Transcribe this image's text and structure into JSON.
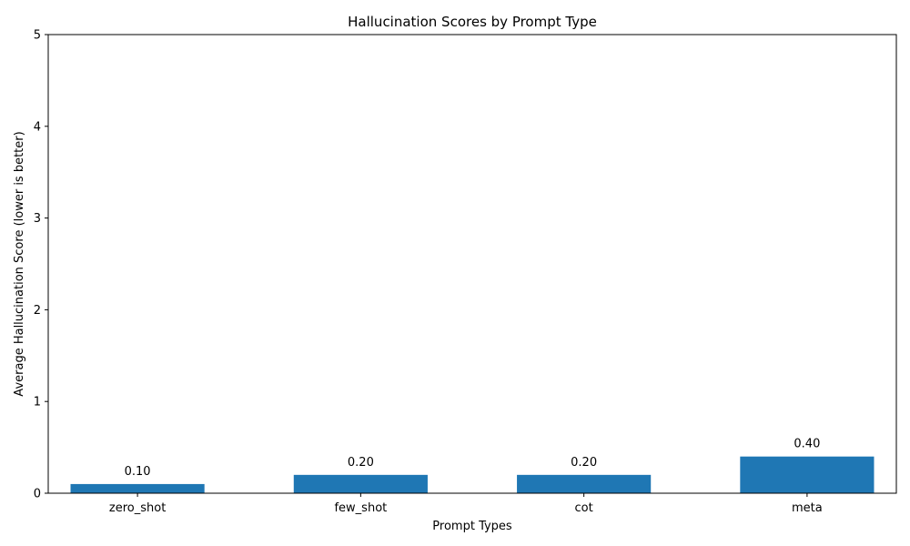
{
  "chart_data": {
    "type": "bar",
    "title": "Hallucination Scores by Prompt Type",
    "xlabel": "Prompt Types",
    "ylabel": "Average Hallucination Score (lower is better)",
    "categories": [
      "zero_shot",
      "few_shot",
      "cot",
      "meta"
    ],
    "values": [
      0.1,
      0.2,
      0.2,
      0.4
    ],
    "value_labels": [
      "0.10",
      "0.20",
      "0.20",
      "0.40"
    ],
    "ylim": [
      0,
      5
    ],
    "yticks": [
      "0",
      "1",
      "2",
      "3",
      "4",
      "5"
    ],
    "grid": false,
    "bar_color": "#1f77b4"
  }
}
